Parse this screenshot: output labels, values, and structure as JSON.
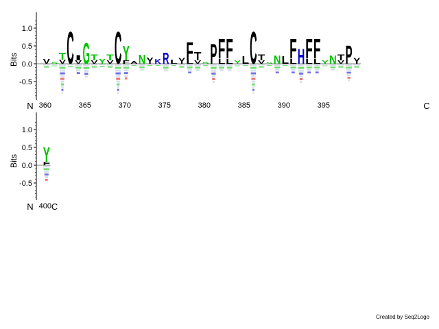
{
  "chart_data": {
    "type": "sequence_logo",
    "ylabel": "Bits",
    "yticks": [
      1.0,
      0.5,
      0.0,
      -0.5
    ],
    "ylim": [
      -1.0,
      1.3
    ],
    "n_terminus_label": "N",
    "c_terminus_label": "C",
    "credit": "Created by Seq2Logo",
    "colors": {
      "hydrophobic": "#000000",
      "polar": "#00c000",
      "basic": "#0000d0",
      "acidic": "#e00000",
      "faint": "#b8c8d8"
    },
    "rows": [
      {
        "position_labels": [
          {
            "pos": 360,
            "label": "360"
          },
          {
            "pos": 365,
            "label": "365"
          },
          {
            "pos": 370,
            "label": "370"
          },
          {
            "pos": 375,
            "label": "375"
          },
          {
            "pos": 380,
            "label": "380"
          },
          {
            "pos": 385,
            "label": "385"
          },
          {
            "pos": 390,
            "label": "390"
          },
          {
            "pos": 395,
            "label": "395"
          }
        ],
        "positions": [
          {
            "pos": 360,
            "up": [
              [
                "V",
                0.14,
                "hydrophobic"
              ]
            ],
            "down": 0.12
          },
          {
            "pos": 361,
            "up": [
              [
                "S",
                0.05,
                "polar"
              ]
            ],
            "down": 0.08
          },
          {
            "pos": 362,
            "up": [
              [
                "T",
                0.2,
                "polar"
              ],
              [
                "V",
                0.12,
                "hydrophobic"
              ]
            ],
            "down": 0.85
          },
          {
            "pos": 363,
            "up": [
              [
                "C",
                0.92,
                "hydrophobic"
              ]
            ],
            "down": 0.1
          },
          {
            "pos": 364,
            "up": [
              [
                "I",
                0.15,
                "hydrophobic"
              ],
              [
                "V",
                0.1,
                "hydrophobic"
              ]
            ],
            "down": 0.3
          },
          {
            "pos": 365,
            "up": [
              [
                "G",
                0.6,
                "polar"
              ]
            ],
            "down": 0.4
          },
          {
            "pos": 366,
            "up": [
              [
                "T",
                0.16,
                "polar"
              ],
              [
                "V",
                0.1,
                "hydrophobic"
              ]
            ],
            "down": 0.12
          },
          {
            "pos": 367,
            "up": [
              [
                "Y",
                0.14,
                "polar"
              ]
            ],
            "down": 0.1
          },
          {
            "pos": 368,
            "up": [
              [
                "T",
                0.16,
                "polar"
              ],
              [
                "V",
                0.1,
                "hydrophobic"
              ]
            ],
            "down": 0.12
          },
          {
            "pos": 369,
            "up": [
              [
                "C",
                0.92,
                "hydrophobic"
              ]
            ],
            "down": 0.85
          },
          {
            "pos": 370,
            "up": [
              [
                "Y",
                0.42,
                "polar"
              ],
              [
                "F",
                0.1,
                "hydrophobic"
              ]
            ],
            "down": 0.45
          },
          {
            "pos": 371,
            "up": [
              [
                "A",
                0.08,
                "hydrophobic"
              ]
            ],
            "down": 0.06
          },
          {
            "pos": 372,
            "up": [
              [
                "N",
                0.26,
                "polar"
              ]
            ],
            "down": 0.2
          },
          {
            "pos": 373,
            "up": [
              [
                "Y",
                0.18,
                "hydrophobic"
              ]
            ],
            "down": 0.06
          },
          {
            "pos": 374,
            "up": [
              [
                "K",
                0.14,
                "basic"
              ]
            ],
            "down": 0.06
          },
          {
            "pos": 375,
            "up": [
              [
                "R",
                0.32,
                "basic"
              ]
            ],
            "down": 0.22
          },
          {
            "pos": 376,
            "up": [
              [
                "L",
                0.12,
                "hydrophobic"
              ]
            ],
            "down": 0.06
          },
          {
            "pos": 377,
            "up": [
              [
                "Y",
                0.16,
                "hydrophobic"
              ]
            ],
            "down": 0.12
          },
          {
            "pos": 378,
            "up": [
              [
                "F",
                0.52,
                "hydrophobic"
              ],
              [
                "L",
                0.1,
                "hydrophobic"
              ]
            ],
            "down": 0.28
          },
          {
            "pos": 379,
            "up": [
              [
                "T",
                0.24,
                "hydrophobic"
              ],
              [
                "V",
                0.1,
                "hydrophobic"
              ]
            ],
            "down": 0.22
          },
          {
            "pos": 380,
            "up": [
              [
                "S",
                0.05,
                "polar"
              ]
            ],
            "down": 0.06
          },
          {
            "pos": 381,
            "up": [
              [
                "P",
                0.58,
                "hydrophobic"
              ]
            ],
            "down": 0.55
          },
          {
            "pos": 382,
            "up": [
              [
                "F",
                0.56,
                "hydrophobic"
              ],
              [
                "L",
                0.14,
                "hydrophobic"
              ]
            ],
            "down": 0.22
          },
          {
            "pos": 383,
            "up": [
              [
                "F",
                0.56,
                "hydrophobic"
              ],
              [
                "L",
                0.14,
                "hydrophobic"
              ]
            ],
            "down": 0.22
          },
          {
            "pos": 384,
            "up": [
              [
                "Y",
                0.1,
                "polar"
              ]
            ],
            "down": 0.08
          },
          {
            "pos": 385,
            "up": [
              [
                "L",
                0.22,
                "hydrophobic"
              ]
            ],
            "down": 0.06
          },
          {
            "pos": 386,
            "up": [
              [
                "C",
                0.92,
                "hydrophobic"
              ]
            ],
            "down": 0.85
          },
          {
            "pos": 387,
            "up": [
              [
                "T",
                0.16,
                "hydrophobic"
              ],
              [
                "V",
                0.1,
                "hydrophobic"
              ]
            ],
            "down": 0.12
          },
          {
            "pos": 388,
            "up": [
              [
                "S",
                0.04,
                "polar"
              ]
            ],
            "down": 0.06
          },
          {
            "pos": 389,
            "up": [
              [
                "N",
                0.24,
                "polar"
              ]
            ],
            "down": 0.28
          },
          {
            "pos": 390,
            "up": [
              [
                "L",
                0.22,
                "hydrophobic"
              ]
            ],
            "down": 0.06
          },
          {
            "pos": 391,
            "up": [
              [
                "F",
                0.56,
                "hydrophobic"
              ],
              [
                "L",
                0.14,
                "hydrophobic"
              ]
            ],
            "down": 0.28
          },
          {
            "pos": 392,
            "up": [
              [
                "H",
                0.44,
                "basic"
              ]
            ],
            "down": 0.55
          },
          {
            "pos": 393,
            "up": [
              [
                "F",
                0.56,
                "hydrophobic"
              ],
              [
                "L",
                0.14,
                "hydrophobic"
              ]
            ],
            "down": 0.28
          },
          {
            "pos": 394,
            "up": [
              [
                "F",
                0.56,
                "hydrophobic"
              ],
              [
                "L",
                0.14,
                "hydrophobic"
              ]
            ],
            "down": 0.28
          },
          {
            "pos": 395,
            "up": [
              [
                "Y",
                0.1,
                "polar"
              ]
            ],
            "down": 0.08
          },
          {
            "pos": 396,
            "up": [
              [
                "N",
                0.24,
                "polar"
              ]
            ],
            "down": 0.2
          },
          {
            "pos": 397,
            "up": [
              [
                "T",
                0.16,
                "hydrophobic"
              ],
              [
                "V",
                0.1,
                "hydrophobic"
              ]
            ],
            "down": 0.12
          },
          {
            "pos": 398,
            "up": [
              [
                "P",
                0.52,
                "hydrophobic"
              ]
            ],
            "down": 0.5
          },
          {
            "pos": 399,
            "up": [
              [
                "Y",
                0.16,
                "hydrophobic"
              ]
            ],
            "down": 0.12
          }
        ]
      },
      {
        "position_labels": [
          {
            "pos": 400,
            "label": "400"
          }
        ],
        "positions": [
          {
            "pos": 400,
            "up": [
              [
                "Y",
                0.42,
                "polar"
              ],
              [
                "F",
                0.1,
                "hydrophobic"
              ]
            ],
            "down": 0.45
          }
        ]
      }
    ]
  }
}
